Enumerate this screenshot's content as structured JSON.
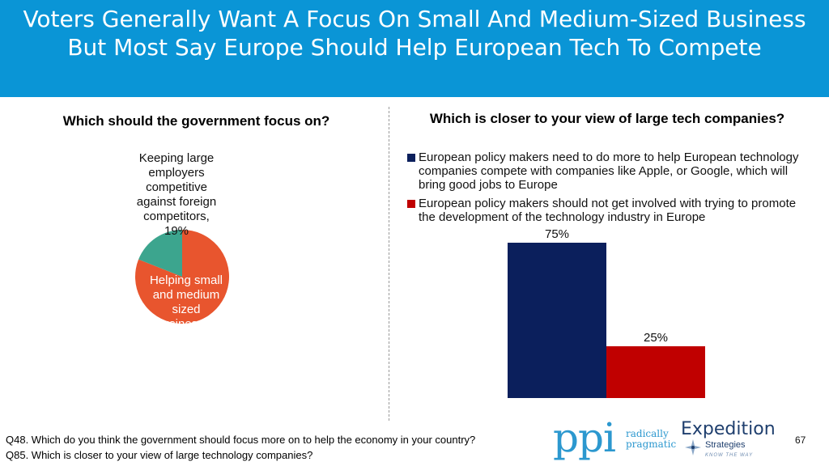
{
  "header": {
    "title": "Voters Generally Want A Focus On Small And Medium-Sized Business But Most Say Europe Should Help European Tech To Compete"
  },
  "colors": {
    "header_bg": "#0a95d6",
    "pie_orange": "#e8552e",
    "pie_teal": "#3ca58e",
    "bar_navy": "#0b1f5c",
    "bar_red": "#c00000"
  },
  "chart_data": [
    {
      "type": "pie",
      "title": "Which should the government focus on?",
      "slices": [
        {
          "label": "Helping small and medium sized businesses",
          "value": 81,
          "color": "#e8552e"
        },
        {
          "label": "Keeping large employers competitive against foreign competitors",
          "value": 19,
          "value_label": "19%",
          "color": "#3ca58e"
        }
      ]
    },
    {
      "type": "bar",
      "title": "Which is closer to your view of large tech companies?",
      "series": [
        {
          "name": "European policy makers need to do more to help European technology companies compete with companies like Apple, or Google, which will bring good jobs to Europe",
          "values": [
            75
          ],
          "value_label": "75%",
          "color": "#0b1f5c"
        },
        {
          "name": "European policy makers should not get involved with trying to promote the development of the technology industry in Europe",
          "values": [
            25
          ],
          "value_label": "25%",
          "color": "#c00000"
        }
      ],
      "ylim": [
        0,
        100
      ],
      "legend_position": "top",
      "grid": false
    }
  ],
  "pie_labels": {
    "large_lines": [
      "Keeping large",
      "employers",
      "competitive",
      "against foreign",
      "competitors,",
      "19%"
    ],
    "small_lines": [
      "Helping small",
      "and medium",
      "sized",
      "businesses"
    ]
  },
  "footer": {
    "q48": "Q48. Which do you think the government should focus more on to help the economy in your country?",
    "q85": "Q85. Which is closer to your view of large technology companies?"
  },
  "logos": {
    "ppi_mark": "ppi",
    "ppi_tag_line1": "radically",
    "ppi_tag_line2": "pragmatic",
    "expedition_name": "Expedition",
    "expedition_sub": "Strategies",
    "expedition_tagline": "KNOW THE WAY"
  },
  "page_number": "67"
}
